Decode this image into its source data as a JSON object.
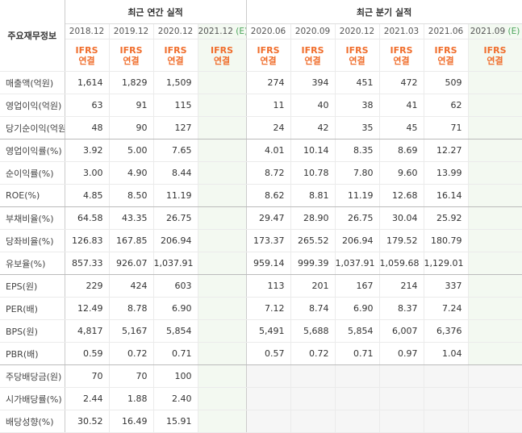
{
  "table": {
    "label_header": "주요재무정보",
    "groups": [
      {
        "title": "최근 연간 실적",
        "columns": [
          {
            "period": "2018.12",
            "basis": "IFRS",
            "consolidation": "연결"
          },
          {
            "period": "2019.12",
            "basis": "IFRS",
            "consolidation": "연결"
          },
          {
            "period": "2020.12",
            "basis": "IFRS",
            "consolidation": "연결"
          },
          {
            "period": "2021.12",
            "suffix": "(E)",
            "basis": "IFRS",
            "consolidation": "연결"
          }
        ]
      },
      {
        "title": "최근 분기 실적",
        "columns": [
          {
            "period": "2020.06",
            "basis": "IFRS",
            "consolidation": "연결"
          },
          {
            "period": "2020.09",
            "basis": "IFRS",
            "consolidation": "연결"
          },
          {
            "period": "2020.12",
            "basis": "IFRS",
            "consolidation": "연결"
          },
          {
            "period": "2021.03",
            "basis": "IFRS",
            "consolidation": "연결"
          },
          {
            "period": "2021.06",
            "basis": "IFRS",
            "consolidation": "연결"
          },
          {
            "period": "2021.09",
            "suffix": "(E)",
            "basis": "IFRS",
            "consolidation": "연결"
          }
        ]
      }
    ],
    "rows": [
      {
        "name": "매출액(억원)",
        "values": [
          [
            "1,614",
            "1,829",
            "1,509",
            null
          ],
          [
            "274",
            "394",
            "451",
            "472",
            "509",
            null
          ]
        ]
      },
      {
        "name": "영업이익(억원)",
        "values": [
          [
            "63",
            "91",
            "115",
            null
          ],
          [
            "11",
            "40",
            "38",
            "41",
            "62",
            null
          ]
        ]
      },
      {
        "name": "당기순이익(억원)",
        "values": [
          [
            "48",
            "90",
            "127",
            null
          ],
          [
            "24",
            "42",
            "35",
            "45",
            "71",
            null
          ]
        ]
      },
      {
        "name": "영업이익률(%)",
        "values": [
          [
            "3.92",
            "5.00",
            "7.65",
            null
          ],
          [
            "4.01",
            "10.14",
            "8.35",
            "8.69",
            "12.27",
            null
          ]
        ]
      },
      {
        "name": "순이익률(%)",
        "values": [
          [
            "3.00",
            "4.90",
            "8.44",
            null
          ],
          [
            "8.72",
            "10.78",
            "7.80",
            "9.60",
            "13.99",
            null
          ]
        ]
      },
      {
        "name": "ROE(%)",
        "values": [
          [
            "4.85",
            "8.50",
            "11.19",
            null
          ],
          [
            "8.62",
            "8.81",
            "11.19",
            "12.68",
            "16.14",
            null
          ]
        ]
      },
      {
        "name": "부채비율(%)",
        "values": [
          [
            "64.58",
            "43.35",
            "26.75",
            null
          ],
          [
            "29.47",
            "28.90",
            "26.75",
            "30.04",
            "25.92",
            null
          ]
        ]
      },
      {
        "name": "당좌비율(%)",
        "values": [
          [
            "126.83",
            "167.85",
            "206.94",
            null
          ],
          [
            "173.37",
            "265.52",
            "206.94",
            "179.52",
            "180.79",
            null
          ]
        ]
      },
      {
        "name": "유보율(%)",
        "values": [
          [
            "857.33",
            "926.07",
            "1,037.91",
            null
          ],
          [
            "959.14",
            "999.39",
            "1,037.91",
            "1,059.68",
            "1,129.01",
            null
          ]
        ]
      },
      {
        "name": "EPS(원)",
        "values": [
          [
            "229",
            "424",
            "603",
            null
          ],
          [
            "113",
            "201",
            "167",
            "214",
            "337",
            null
          ]
        ]
      },
      {
        "name": "PER(배)",
        "values": [
          [
            "12.49",
            "8.78",
            "6.90",
            null
          ],
          [
            "7.12",
            "8.74",
            "6.90",
            "8.37",
            "7.24",
            null
          ]
        ]
      },
      {
        "name": "BPS(원)",
        "values": [
          [
            "4,817",
            "5,167",
            "5,854",
            null
          ],
          [
            "5,491",
            "5,688",
            "5,854",
            "6,007",
            "6,376",
            null
          ]
        ]
      },
      {
        "name": "PBR(배)",
        "values": [
          [
            "0.59",
            "0.72",
            "0.71",
            null
          ],
          [
            "0.57",
            "0.72",
            "0.71",
            "0.97",
            "1.04",
            null
          ]
        ]
      },
      {
        "name": "주당배당금(원)",
        "values": [
          [
            "70",
            "70",
            "100",
            null
          ],
          [
            null,
            null,
            null,
            null,
            null,
            null
          ]
        ]
      },
      {
        "name": "시가배당률(%)",
        "values": [
          [
            "2.44",
            "1.88",
            "2.40",
            null
          ],
          [
            null,
            null,
            null,
            null,
            null,
            null
          ]
        ]
      },
      {
        "name": "배당성향(%)",
        "values": [
          [
            "30.52",
            "16.49",
            "15.91",
            null
          ],
          [
            null,
            null,
            null,
            null,
            null,
            null
          ]
        ]
      }
    ]
  }
}
